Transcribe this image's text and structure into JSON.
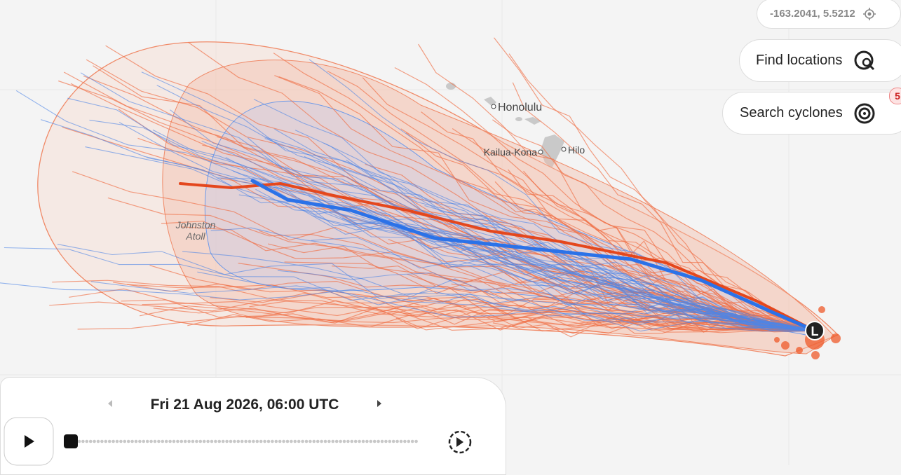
{
  "coordinates": "-163.2041, 5.5212",
  "buttons": {
    "find_locations": "Find locations",
    "search_cyclones": "Search cyclones",
    "search_badge": "5"
  },
  "places": {
    "honolulu": "Honolulu",
    "kailua_kona": "Kailua-Kona",
    "hilo": "Hilo",
    "johnston_atoll": [
      "Johnston",
      "Atoll"
    ]
  },
  "storm_marker": "L",
  "timeline": {
    "datetime": "Fri 21 Aug 2026, 06:00 UTC"
  }
}
